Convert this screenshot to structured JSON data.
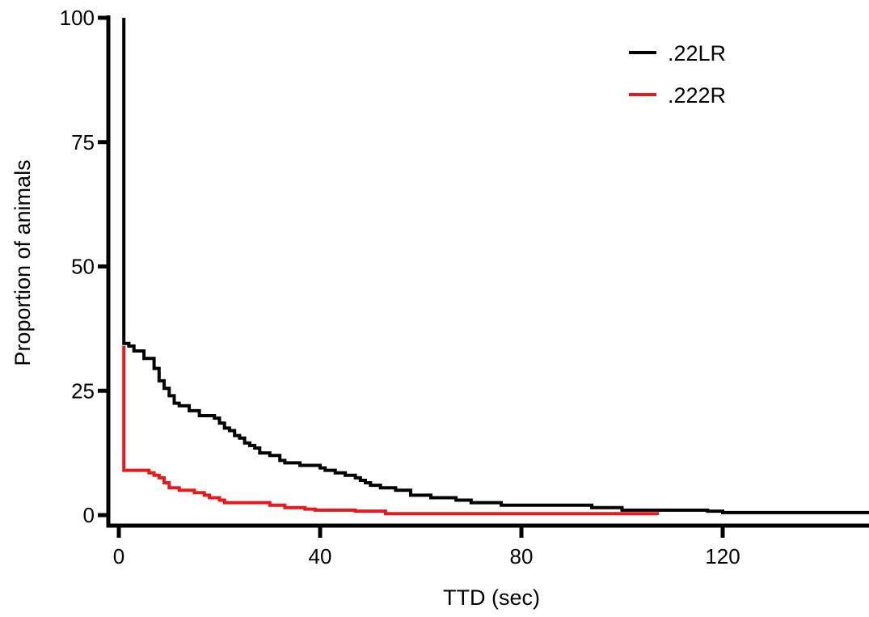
{
  "chart_data": {
    "type": "line",
    "title": "",
    "xlabel": "TTD (sec)",
    "ylabel": "Proportion of animals",
    "xlim": [
      -3,
      150
    ],
    "ylim": [
      -2,
      100
    ],
    "x_ticks": [
      0,
      40,
      80,
      120
    ],
    "x_tick_labels": [
      "0",
      "40",
      "80",
      "120"
    ],
    "y_ticks": [
      0,
      25,
      50,
      75,
      100
    ],
    "y_tick_labels": [
      "0",
      "25",
      "50",
      "75",
      "100"
    ],
    "grid": false,
    "legend_position": "top-right",
    "series": [
      {
        "name": ".22LR",
        "color": "#000000",
        "step": true,
        "x": [
          1,
          1,
          2,
          3,
          5,
          7,
          8,
          9,
          10,
          11,
          12,
          14,
          16,
          19,
          20,
          21,
          22,
          23,
          24,
          25,
          26,
          27,
          28,
          30,
          32,
          33,
          34,
          36,
          39,
          40,
          41,
          43,
          45,
          47,
          48,
          49,
          50,
          52,
          55,
          58,
          62,
          64,
          67,
          70,
          76,
          88,
          94,
          95,
          100,
          117,
          120,
          150
        ],
        "y": [
          100,
          34.5,
          34,
          33,
          31.5,
          29.5,
          27,
          25.5,
          24,
          22.5,
          22,
          21,
          20,
          19.5,
          18.5,
          17.5,
          17,
          16,
          15.5,
          14.5,
          14,
          13.5,
          12.5,
          12,
          11,
          10.5,
          10.5,
          10,
          10,
          9.5,
          9,
          8.5,
          8,
          7.5,
          7,
          6.5,
          6,
          5.5,
          5,
          4,
          3.5,
          3.5,
          3,
          2.5,
          2,
          2,
          1.5,
          1.5,
          1,
          0.8,
          0.5,
          0.5
        ]
      },
      {
        "name": ".222R",
        "color": "#e8191c",
        "step": true,
        "x": [
          1,
          1,
          6,
          7,
          8,
          9,
          10,
          12,
          15,
          17,
          18,
          20,
          21,
          26,
          30,
          33,
          37,
          39,
          47,
          53,
          57,
          100,
          107
        ],
        "y": [
          34,
          9,
          8.5,
          8,
          7.5,
          6.5,
          5.5,
          5,
          4.5,
          4,
          3.5,
          3,
          2.5,
          2.5,
          2,
          1.5,
          1.2,
          1,
          0.8,
          0.3,
          0.3,
          0.3,
          0
        ]
      }
    ]
  }
}
